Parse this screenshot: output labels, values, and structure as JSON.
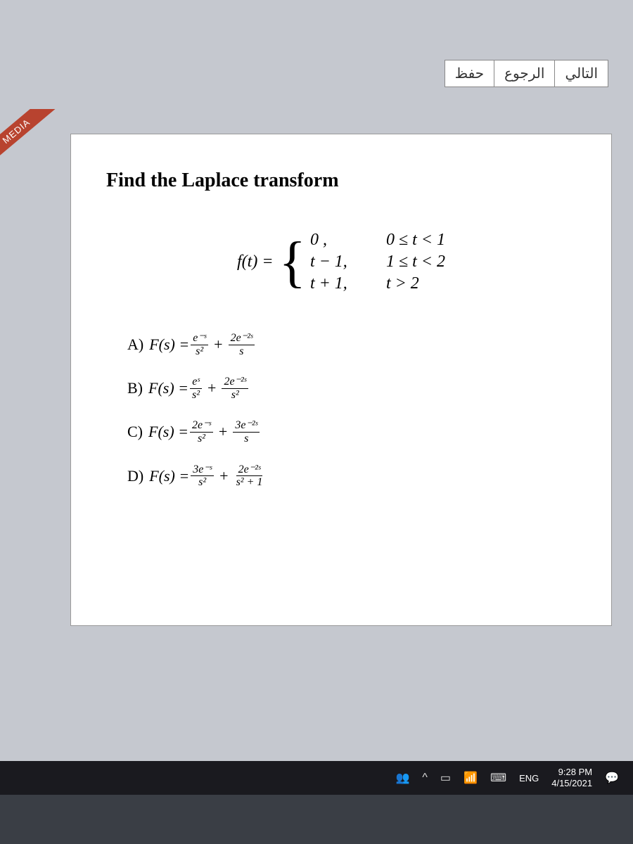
{
  "nav": {
    "save_label": "حفظ",
    "back_label": "الرجوع",
    "next_label": "التالي"
  },
  "ribbon": {
    "text": "MEDIA"
  },
  "question": {
    "title": "Find the Laplace transform",
    "func_lhs": "f(t) =",
    "cases": [
      {
        "expr": "0 ,",
        "cond": "0 ≤ t < 1"
      },
      {
        "expr": "t − 1,",
        "cond": "1 ≤ t < 2"
      },
      {
        "expr": "t + 1,",
        "cond": "t > 2"
      }
    ],
    "answers": [
      {
        "label": "A)",
        "lhs": "F(s) =",
        "t1_num": "e⁻ˢ",
        "t1_den": "s²",
        "t2_num": "2e⁻²ˢ",
        "t2_den": "s"
      },
      {
        "label": "B)",
        "lhs": "F(s) =",
        "t1_num": "eˢ",
        "t1_den": "s²",
        "t2_num": "2e⁻²ˢ",
        "t2_den": "s²"
      },
      {
        "label": "C)",
        "lhs": "F(s) =",
        "t1_num": "2e⁻ˢ",
        "t1_den": "s²",
        "t2_num": "3e⁻²ˢ",
        "t2_den": "s"
      },
      {
        "label": "D)",
        "lhs": "F(s) =",
        "t1_num": "3e⁻ˢ",
        "t1_den": "s²",
        "t2_num": "2e⁻²ˢ",
        "t2_den": "s² + 1"
      }
    ]
  },
  "taskbar": {
    "lang": "ENG",
    "time": "9:28 PM",
    "date": "4/15/2021"
  }
}
